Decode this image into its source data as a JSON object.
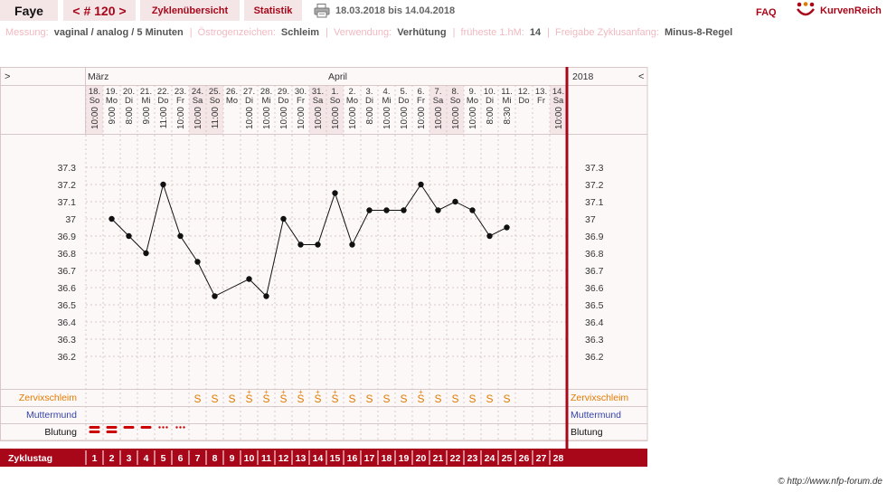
{
  "header": {
    "user": "Faye",
    "cycle_nav": "< # 120 >",
    "tabs": [
      "Zyklenübersicht",
      "Statistik"
    ],
    "print_icon": "printer-icon",
    "date_range": "18.03.2018 bis 14.04.2018",
    "faq": "FAQ",
    "logo_icon": "kurvenreich-logo-icon",
    "logo_text": "KurvenReich"
  },
  "info": {
    "messung_label": "Messung:",
    "messung_value": "vaginal / analog / 5 Minuten",
    "oestrogen_label": "Östrogenzeichen:",
    "oestrogen_value": "Schleim",
    "verwendung_label": "Verwendung:",
    "verwendung_value": "Verhütung",
    "hm_label": "früheste 1.hM:",
    "hm_value": "14",
    "freigabe_label": "Freigabe Zyklusanfang:",
    "freigabe_value": "Minus-8-Regel"
  },
  "chart_data": {
    "type": "line",
    "nav_left": ">",
    "nav_right": "<",
    "year": "2018",
    "months": [
      {
        "name": "März",
        "start_col": 0
      },
      {
        "name": "April",
        "start_col": 14
      }
    ],
    "days": [
      {
        "date": "18.",
        "wd": "So",
        "time": "10:00",
        "weekend": true
      },
      {
        "date": "19.",
        "wd": "Mo",
        "time": "9:00",
        "weekend": false
      },
      {
        "date": "20.",
        "wd": "Di",
        "time": "8:00",
        "weekend": false
      },
      {
        "date": "21.",
        "wd": "Mi",
        "time": "9:00",
        "weekend": false
      },
      {
        "date": "22.",
        "wd": "Do",
        "time": "11:00",
        "weekend": false
      },
      {
        "date": "23.",
        "wd": "Fr",
        "time": "10:00",
        "weekend": false
      },
      {
        "date": "24.",
        "wd": "Sa",
        "time": "10:00",
        "weekend": true
      },
      {
        "date": "25.",
        "wd": "So",
        "time": "11:00",
        "weekend": true
      },
      {
        "date": "26.",
        "wd": "Mo",
        "time": "",
        "weekend": false
      },
      {
        "date": "27.",
        "wd": "Di",
        "time": "10:00",
        "weekend": false
      },
      {
        "date": "28.",
        "wd": "Mi",
        "time": "10:00",
        "weekend": false
      },
      {
        "date": "29.",
        "wd": "Do",
        "time": "10:00",
        "weekend": false
      },
      {
        "date": "30.",
        "wd": "Fr",
        "time": "10:00",
        "weekend": false
      },
      {
        "date": "31.",
        "wd": "Sa",
        "time": "10:00",
        "weekend": true
      },
      {
        "date": "1.",
        "wd": "So",
        "time": "10:00",
        "weekend": true
      },
      {
        "date": "2.",
        "wd": "Mo",
        "time": "10:00",
        "weekend": false
      },
      {
        "date": "3.",
        "wd": "Di",
        "time": "8:00",
        "weekend": false
      },
      {
        "date": "4.",
        "wd": "Mi",
        "time": "10:00",
        "weekend": false
      },
      {
        "date": "5.",
        "wd": "Do",
        "time": "10:00",
        "weekend": false
      },
      {
        "date": "6.",
        "wd": "Fr",
        "time": "10:00",
        "weekend": false
      },
      {
        "date": "7.",
        "wd": "Sa",
        "time": "10:00",
        "weekend": true
      },
      {
        "date": "8.",
        "wd": "So",
        "time": "10:00",
        "weekend": true
      },
      {
        "date": "9.",
        "wd": "Mo",
        "time": "10:00",
        "weekend": false
      },
      {
        "date": "10.",
        "wd": "Di",
        "time": "8:00",
        "weekend": false
      },
      {
        "date": "11.",
        "wd": "Mi",
        "time": "8:30",
        "weekend": false
      },
      {
        "date": "12.",
        "wd": "Do",
        "time": "",
        "weekend": false
      },
      {
        "date": "13.",
        "wd": "Fr",
        "time": "",
        "weekend": false
      },
      {
        "date": "14.",
        "wd": "Sa",
        "time": "10:00",
        "weekend": true
      }
    ],
    "y_ticks": [
      37.3,
      37.2,
      37.1,
      37,
      36.9,
      36.8,
      36.7,
      36.6,
      36.5,
      36.4,
      36.3,
      36.2
    ],
    "ylim": [
      36.2,
      37.3
    ],
    "temperatures": [
      null,
      37.0,
      36.9,
      36.8,
      37.2,
      36.9,
      36.75,
      36.55,
      null,
      36.65,
      36.55,
      37.0,
      36.85,
      36.85,
      37.15,
      36.85,
      37.05,
      37.05,
      37.05,
      37.2,
      37.05,
      37.1,
      37.05,
      36.9,
      36.95,
      null,
      null,
      null
    ],
    "rows": {
      "cervix_label": "Zervixschleim",
      "muttermund_label": "Muttermund",
      "blutung_label": "Blutung",
      "zyklustag_label": "Zyklustag"
    },
    "cervix": [
      "",
      "",
      "",
      "",
      "",
      "",
      "S",
      "S",
      "S",
      "S+",
      "S+",
      "S+",
      "S+",
      "S+",
      "S+",
      "S",
      "S",
      "S",
      "S",
      "S+",
      "S",
      "S",
      "S",
      "S",
      "S",
      "",
      "",
      ""
    ],
    "bleeding": [
      "heavy",
      "heavy",
      "medium",
      "medium",
      "light",
      "light",
      "",
      "",
      "",
      "",
      "",
      "",
      "",
      "",
      "",
      "",
      "",
      "",
      "",
      "",
      "",
      "",
      "",
      "",
      "",
      "",
      "",
      ""
    ],
    "cycle_days": [
      "1",
      "2",
      "3",
      "4",
      "5",
      "6",
      "7",
      "8",
      "9",
      "10",
      "11",
      "12",
      "13",
      "14",
      "15",
      "16",
      "17",
      "18",
      "19",
      "20",
      "21",
      "22",
      "23",
      "24",
      "25",
      "26",
      "27",
      "28"
    ],
    "colors": {
      "accent": "#a8071a",
      "weekend": "#f4e5e7",
      "cervix": "#e07b00",
      "muttermund": "#3344aa",
      "grid": "#d8c8c8"
    }
  },
  "footer": {
    "copyright": "© http://www.nfp-forum.de"
  }
}
